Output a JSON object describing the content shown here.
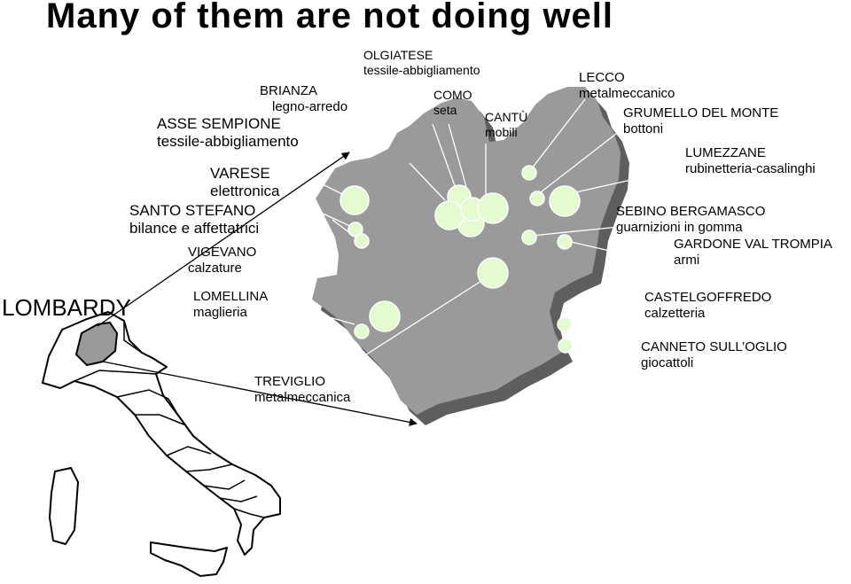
{
  "title": "Many of them are not doing well",
  "region_label": "LOMBARDY",
  "districts": [
    {
      "id": "brianza",
      "name": "BRIANZA",
      "industry": "legno-arredo"
    },
    {
      "id": "asse-sempione",
      "name": "ASSE SEMPIONE",
      "industry": "tessile-abbigliamento"
    },
    {
      "id": "varese",
      "name": "VARESE",
      "industry": "elettronica"
    },
    {
      "id": "santo-stefano",
      "name": "SANTO STEFANO",
      "industry": "bilance e affettatrici"
    },
    {
      "id": "vigevano",
      "name": "VIGEVANO",
      "industry": "calzature"
    },
    {
      "id": "lomellina",
      "name": "LOMELLINA",
      "industry": "maglieria"
    },
    {
      "id": "olgiatese",
      "name": "OLGIATESE",
      "industry": "tessile-abbigliamento"
    },
    {
      "id": "como",
      "name": "COMO",
      "industry": "seta"
    },
    {
      "id": "cantu",
      "name": "CANTÙ",
      "industry": "mobili"
    },
    {
      "id": "lecco",
      "name": "LECCO",
      "industry": "metalmeccanico"
    },
    {
      "id": "grumello",
      "name": "GRUMELLO DEL  MONTE",
      "industry": "bottoni"
    },
    {
      "id": "lumezzane",
      "name": "LUMEZZANE",
      "industry": "rubinetteria-casalinghi"
    },
    {
      "id": "sebino",
      "name": "SEBINO BERGAMASCO",
      "industry": "guarnizioni in gomma"
    },
    {
      "id": "gardone",
      "name": "GARDONE VAL TROMPIA",
      "industry": "armi"
    },
    {
      "id": "castelgoffredo",
      "name": "CASTELGOFFREDO",
      "industry": "calzetteria"
    },
    {
      "id": "canneto",
      "name": "CANNETO SULL’OGLIO",
      "industry": "giocattoli"
    },
    {
      "id": "treviglio",
      "name": "TREVIGLIO",
      "industry": "metalmeccanica"
    }
  ],
  "colors": {
    "region_fill": "#9a9a9a",
    "region_shadow": "#5e5e5e",
    "cluster_fill": "#e4fbd0",
    "highlight_fill": "#9a9a9a",
    "line": "#ffffff",
    "arrow": "#000000"
  }
}
